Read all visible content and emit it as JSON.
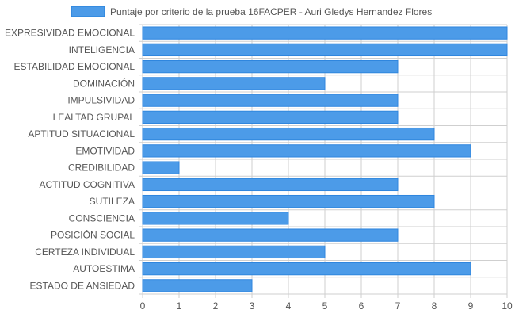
{
  "colors": {
    "bar_fill": "#4c9be8",
    "bar_stroke": "#2f86de",
    "grid": "#cfcfcf",
    "text": "#555555"
  },
  "chart_data": {
    "type": "bar",
    "orientation": "horizontal",
    "categories": [
      "EXPRESIVIDAD EMOCIONAL",
      "INTELIGENCIA",
      "ESTABILIDAD EMOCIONAL",
      "DOMINACIÓN",
      "IMPULSIVIDAD",
      "LEALTAD GRUPAL",
      "APTITUD SITUACIONAL",
      "EMOTIVIDAD",
      "CREDIBILIDAD",
      "ACTITUD COGNITIVA",
      "SUTILEZA",
      "CONSCIENCIA",
      "POSICIÓN SOCIAL",
      "CERTEZA INDIVIDUAL",
      "AUTOESTIMA",
      "ESTADO DE ANSIEDAD"
    ],
    "series": [
      {
        "name": "Puntaje por criterio de la prueba 16FACPER - Auri Gledys Hernandez Flores",
        "values": [
          10,
          10,
          7,
          5,
          7,
          7,
          8,
          9,
          1,
          7,
          8,
          4,
          7,
          5,
          9,
          3
        ]
      }
    ],
    "xlim": [
      0,
      10
    ],
    "xticks": [
      "0",
      "1",
      "2",
      "3",
      "4",
      "5",
      "6",
      "7",
      "8",
      "9",
      "10"
    ],
    "grid": true,
    "legend_position": "top-center"
  }
}
